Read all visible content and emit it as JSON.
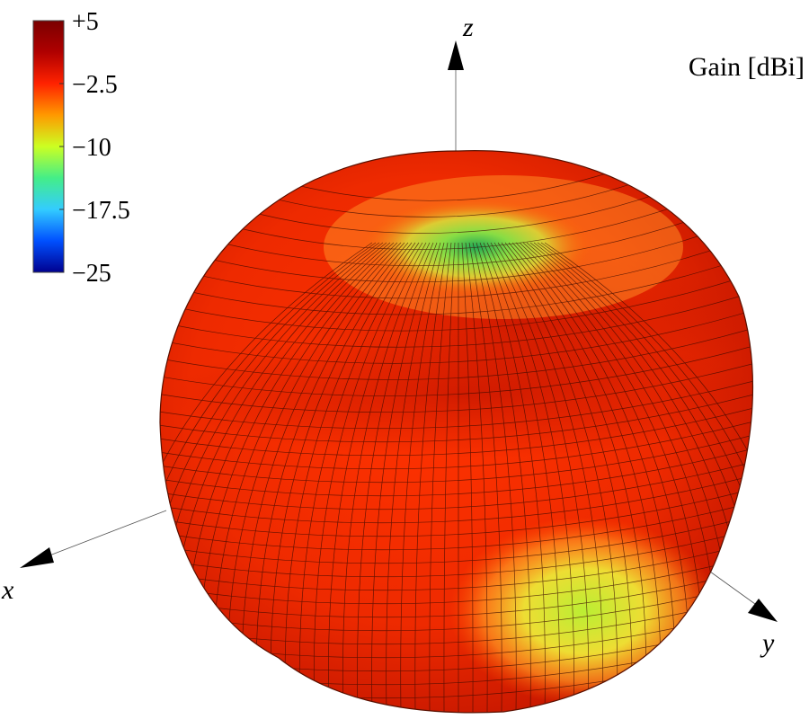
{
  "chart_data": {
    "type": "surface",
    "title": "Gain [dBi]",
    "description_kind": "3D radiation pattern",
    "axes": {
      "x_label": "x",
      "y_label": "y",
      "z_label": "z"
    },
    "colorbar": {
      "range": [
        -25,
        5
      ],
      "ticks": [
        "+5",
        "−2.5",
        "−10",
        "−17.5",
        "−25"
      ],
      "tick_values": [
        5,
        -2.5,
        -10,
        -17.5,
        -25
      ],
      "colormap": [
        "#00008f",
        "#0050ff",
        "#33ccff",
        "#44ee88",
        "#ccff22",
        "#ff9900",
        "#ff2200",
        "#b00000",
        "#7a0000"
      ]
    },
    "features": {
      "dominant_gain_dBi": [
        0,
        5
      ],
      "null_direction": "+z (top)",
      "null_gain_dBi": [
        -12,
        -6
      ],
      "lower_lobe_region_gain_dBi": [
        -8,
        -4
      ]
    }
  }
}
